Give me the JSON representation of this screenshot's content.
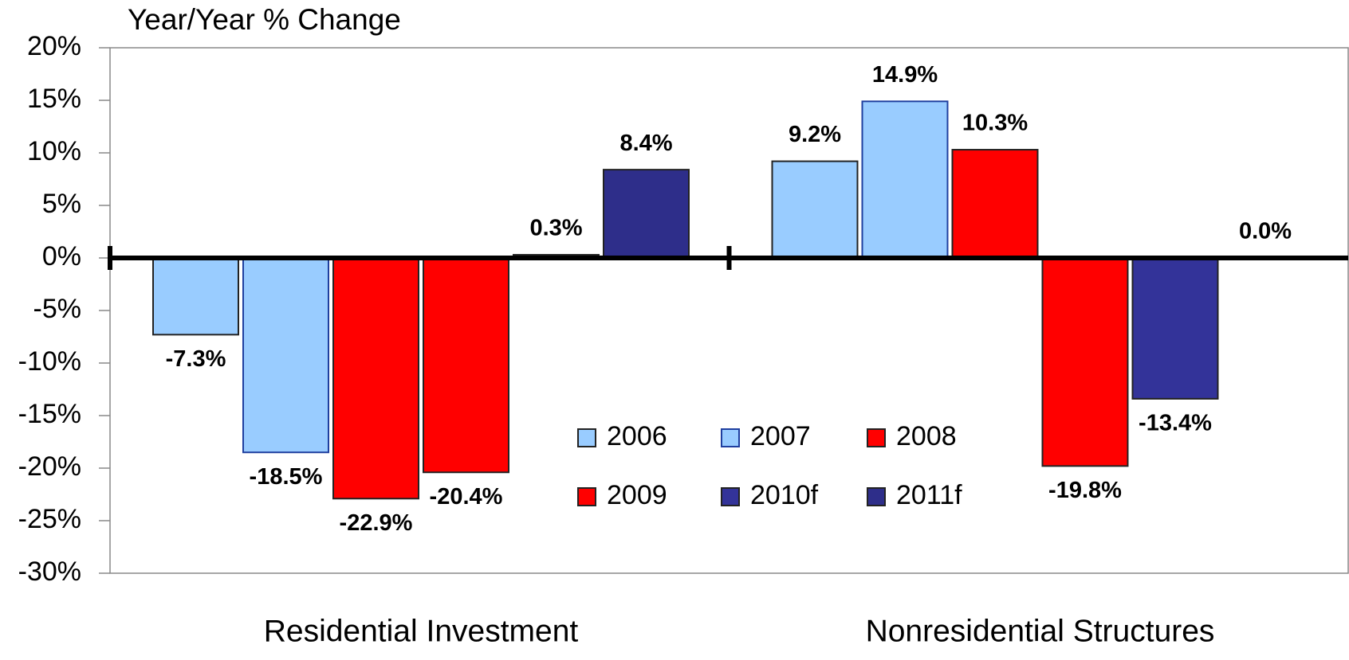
{
  "chart_data": {
    "type": "bar",
    "ylabel": "Year/Year % Change",
    "categories": [
      "Residential Investment",
      "Nonresidential Structures"
    ],
    "series": [
      {
        "name": "2006",
        "color": "#99ccff",
        "values": [
          -7.3,
          9.2
        ],
        "value_labels": [
          "-7.3%",
          "9.2%"
        ]
      },
      {
        "name": "2007",
        "color": "#99ccff",
        "values": [
          -18.5,
          14.9
        ],
        "value_labels": [
          "-18.5%",
          "14.9%"
        ]
      },
      {
        "name": "2008",
        "color": "#ff0000",
        "values": [
          -22.9,
          10.3
        ],
        "value_labels": [
          "-22.9%",
          "10.3%"
        ]
      },
      {
        "name": "2009",
        "color": "#ff0000",
        "values": [
          -20.4,
          -19.8
        ],
        "value_labels": [
          "-20.4%",
          "-19.8%"
        ]
      },
      {
        "name": "2010f",
        "color": "#333399",
        "values": [
          0.3,
          -13.4
        ],
        "value_labels": [
          "0.3%",
          "-13.4%"
        ]
      },
      {
        "name": "2011f",
        "color": "#2e2e8a",
        "values": [
          8.4,
          0.0
        ],
        "value_labels": [
          "8.4%",
          "0.0%"
        ]
      }
    ],
    "ylim": [
      -30,
      20
    ],
    "yticks": [
      {
        "value": -30,
        "label": "-30%"
      },
      {
        "value": -25,
        "label": "-25%"
      },
      {
        "value": -20,
        "label": "-20%"
      },
      {
        "value": -15,
        "label": "-15%"
      },
      {
        "value": -10,
        "label": "-10%"
      },
      {
        "value": -5,
        "label": "-5%"
      },
      {
        "value": 0,
        "label": "0%"
      },
      {
        "value": 5,
        "label": "5%"
      },
      {
        "value": 10,
        "label": "10%"
      },
      {
        "value": 15,
        "label": "15%"
      },
      {
        "value": 20,
        "label": "20%"
      }
    ],
    "grid": false
  }
}
